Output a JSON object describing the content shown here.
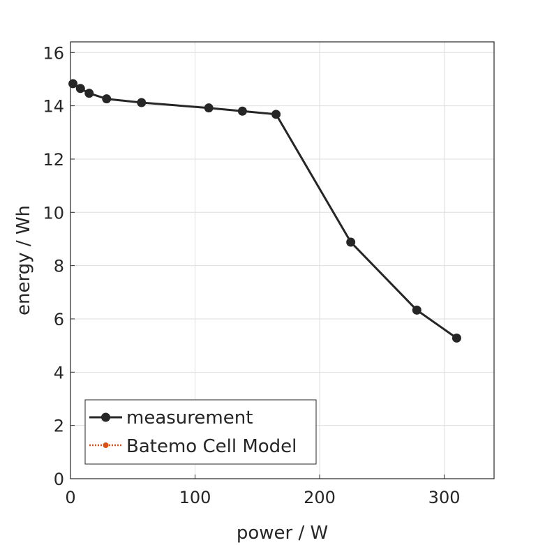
{
  "chart_data": {
    "type": "line",
    "title": "",
    "xlabel": "power / W",
    "ylabel": "energy / Wh",
    "xlim": [
      0,
      340
    ],
    "ylim": [
      0,
      16.4
    ],
    "xticks": [
      0,
      100,
      200,
      300
    ],
    "xtick_labels": [
      "0",
      "100",
      "200",
      "300"
    ],
    "yticks": [
      0,
      2,
      4,
      6,
      8,
      10,
      12,
      14,
      16
    ],
    "ytick_labels": [
      "0",
      "2",
      "4",
      "6",
      "8",
      "10",
      "12",
      "14",
      "16"
    ],
    "grid": true,
    "legend_position": "bottom-left",
    "series": [
      {
        "name": "measurement",
        "color": "#262626",
        "line_style": "solid",
        "marker": "circle",
        "x": [
          2,
          8,
          15,
          29,
          57,
          111,
          138,
          165,
          225,
          278,
          310
        ],
        "y": [
          14.83,
          14.65,
          14.47,
          14.26,
          14.12,
          13.92,
          13.8,
          13.68,
          8.88,
          6.33,
          5.28
        ]
      },
      {
        "name": "Batemo Cell Model",
        "color": "#d95319",
        "line_style": "dotted",
        "marker": "circle",
        "x": [],
        "y": []
      }
    ]
  }
}
